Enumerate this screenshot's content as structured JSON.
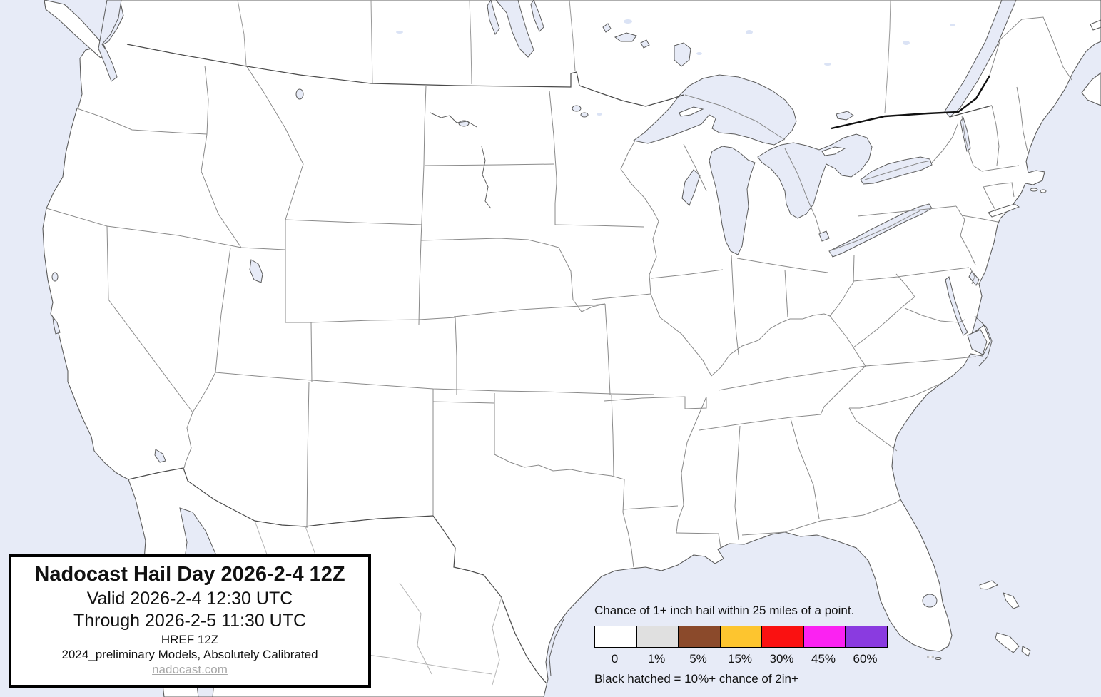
{
  "map": {
    "region": "Contiguous United States with southern Canada and northern Mexico",
    "ocean_color": "#E7EBF7",
    "land_color": "#FFFFFF",
    "coast_color": "#5C5C5C",
    "state_line_color": "#8A8A8A",
    "shaded_probability_regions": "none (entire map at 0 / white)"
  },
  "title_box": {
    "title": "Nadocast Hail Day 2026-2-4 12Z",
    "valid": "Valid 2026-2-4 12:30 UTC",
    "through": "Through 2026-2-5 11:30 UTC",
    "model": "HREF 12Z",
    "models_note": "2024_preliminary Models, Absolutely Calibrated",
    "link": "nadocast.com"
  },
  "legend": {
    "title": "Chance of 1+ inch hail within 25 miles of a point.",
    "note": "Black hatched = 10%+ chance of 2in+",
    "items": [
      {
        "label": "0",
        "color": "#FFFFFF"
      },
      {
        "label": "1%",
        "color": "#E0E0E0"
      },
      {
        "label": "5%",
        "color": "#8B4A2B"
      },
      {
        "label": "15%",
        "color": "#FDC52F"
      },
      {
        "label": "30%",
        "color": "#FA1111"
      },
      {
        "label": "45%",
        "color": "#FB22F2"
      },
      {
        "label": "60%",
        "color": "#8A3BE0"
      }
    ]
  }
}
